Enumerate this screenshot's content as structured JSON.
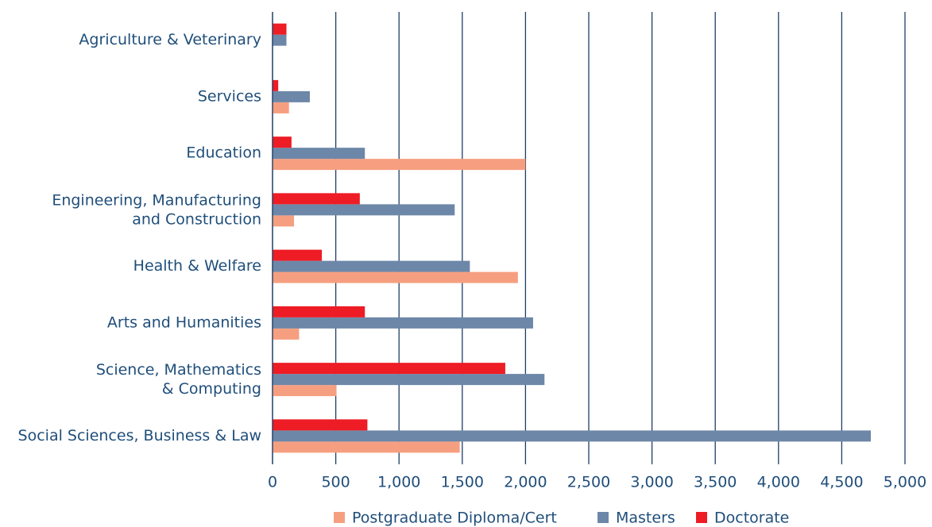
{
  "chart_data": {
    "type": "hbar",
    "categories": [
      "Agriculture & Veterinary",
      "Services",
      "Education",
      "Engineering, Manufacturing\nand Construction",
      "Health & Welfare",
      "Arts and Humanities",
      "Science, Mathematics\n& Computing",
      "Social Sciences, Business & Law"
    ],
    "series": [
      {
        "name": "Postgraduate Diploma/Cert",
        "color": "#f69f80",
        "values": [
          0,
          130,
          2000,
          170,
          1940,
          210,
          505,
          1480
        ]
      },
      {
        "name": "Masters",
        "color": "#6d87a8",
        "values": [
          110,
          295,
          730,
          1440,
          1560,
          2060,
          2150,
          4730
        ]
      },
      {
        "name": "Doctorate",
        "color": "#ee1c25",
        "values": [
          110,
          45,
          150,
          690,
          390,
          730,
          1840,
          750
        ]
      }
    ],
    "xlim": [
      0,
      5000
    ],
    "xticks": [
      0,
      500,
      {
        "value": 1000,
        "label": "1,000"
      },
      {
        "value": 1500,
        "label": "1,500"
      },
      {
        "value": 2000,
        "label": "2,000"
      },
      {
        "value": 2500,
        "label": "2,500"
      },
      {
        "value": 3000,
        "label": "3,000"
      },
      {
        "value": 3500,
        "label": "3,500"
      },
      {
        "value": 4000,
        "label": "4,000"
      },
      {
        "value": 4500,
        "label": "4,500"
      },
      {
        "value": 5000,
        "label": "5,000"
      }
    ],
    "grid": true,
    "legend": "bottom"
  }
}
